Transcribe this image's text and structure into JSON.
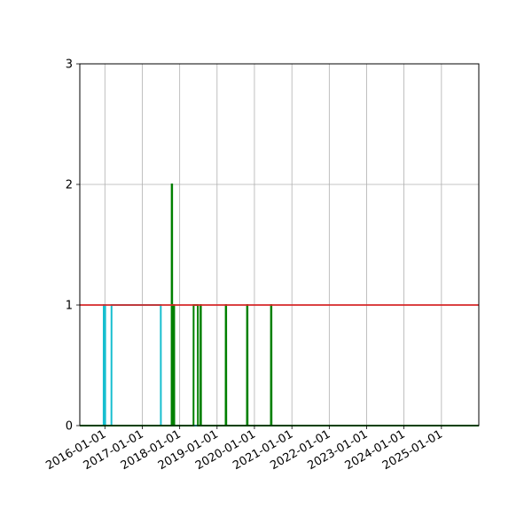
{
  "chart_data": {
    "type": "line",
    "title": "",
    "xlabel": "",
    "ylabel": "",
    "x_axis": {
      "kind": "date",
      "range": [
        "2015-05-01",
        "2026-01-01"
      ],
      "ticks": [
        "2016-01-01",
        "2017-01-01",
        "2018-01-01",
        "2019-01-01",
        "2020-01-01",
        "2021-01-01",
        "2022-01-01",
        "2023-01-01",
        "2024-01-01",
        "2025-01-01"
      ],
      "tick_labels": [
        "2016-01-01",
        "2017-01-01",
        "2018-01-01",
        "2019-01-01",
        "2020-01-01",
        "2021-01-01",
        "2022-01-01",
        "2023-01-01",
        "2024-01-01",
        "2025-01-01"
      ]
    },
    "y_axis": {
      "range": [
        0,
        3
      ],
      "ticks": [
        0,
        1,
        2,
        3
      ],
      "tick_labels": [
        "0",
        "1",
        "2",
        "3"
      ]
    },
    "grid": true,
    "legend": "none",
    "reference_lines": [
      {
        "axis": "y",
        "value": 1,
        "color": "#d62728"
      }
    ],
    "series": [
      {
        "color": "#17becf",
        "x": [
          "2015-05-01",
          "2015-12-20",
          "2015-12-21",
          "2016-01-04",
          "2016-01-04",
          "2016-03-05",
          "2016-03-06",
          "2017-06-30",
          "2017-07-01",
          "2026-01-01"
        ],
        "y": [
          0,
          0,
          1,
          1,
          0,
          0,
          1,
          1,
          0,
          0
        ]
      },
      {
        "color": "#008000",
        "x": [
          "2015-05-01",
          "2017-10-14",
          "2017-10-15",
          "2017-10-19",
          "2017-10-20",
          "2017-11-03",
          "2017-11-04",
          "2017-11-08",
          "2017-11-09",
          "2018-05-16",
          "2018-05-17",
          "2018-06-27",
          "2018-06-28",
          "2018-07-22",
          "2018-07-23",
          "2018-07-27",
          "2018-07-28",
          "2019-03-26",
          "2019-03-27",
          "2019-03-31",
          "2019-04-01",
          "2019-10-20",
          "2019-10-21",
          "2019-10-25",
          "2019-10-26",
          "2020-06-10",
          "2020-06-11",
          "2020-06-15",
          "2020-06-16",
          "2026-01-01"
        ],
        "y": [
          0,
          0,
          2,
          2,
          0,
          0,
          1,
          1,
          0,
          0,
          1,
          1,
          0,
          0,
          1,
          1,
          0,
          0,
          1,
          1,
          0,
          0,
          1,
          1,
          0,
          0,
          1,
          1,
          0,
          0
        ]
      }
    ]
  }
}
